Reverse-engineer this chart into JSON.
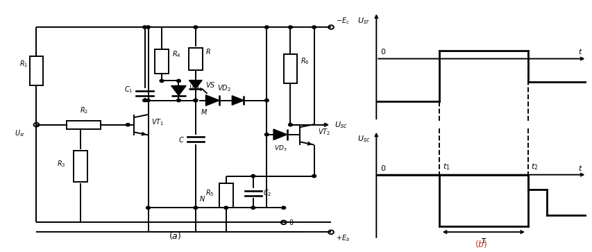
{
  "fig_width": 8.54,
  "fig_height": 3.63,
  "bg_color": "#ffffff",
  "line_color": "#000000",
  "lw": 1.4,
  "lw_sig": 2.0,
  "fontsize": 7,
  "fontsize_label": 8
}
